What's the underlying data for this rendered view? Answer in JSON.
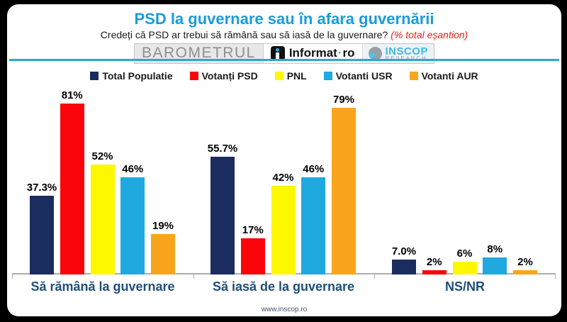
{
  "page": {
    "title": "PSD la guvernare sau în afara guvernării",
    "subtitle": "Credeți că PSD ar trebui să rămână sau să iasă de la guvernare?",
    "subtitle_note": "(% total eșantion)",
    "footer": "www.inscop.ro"
  },
  "logos": {
    "barometrul": "BAROMETRUL",
    "informat_name": "Informat",
    "informat_dot": "·",
    "informat_tld": "ro",
    "inscop_name": "INSCOP",
    "inscop_sub": "RESEARCH"
  },
  "colors": {
    "title_blue": "#1a9cd8",
    "divider_blue": "#2ba7dc",
    "note_red": "#e8201e",
    "category_label": "#1f4e79",
    "axis_gray": "#adadad",
    "footer_text": "#44546a"
  },
  "chart_data": {
    "type": "bar",
    "grouped": true,
    "title": "PSD la guvernare sau în afara guvernării",
    "categories": [
      "Să rămână la guvernare",
      "Să iasă de la guvernare",
      "NS/NR"
    ],
    "series": [
      {
        "name": "Total Populatie",
        "color": "#1b2d5e",
        "values": [
          37.3,
          55.7,
          7.0
        ],
        "labels": [
          "37.3%",
          "55.7%",
          "7.0%"
        ]
      },
      {
        "name": "Votanți PSD",
        "color": "#fa050a",
        "values": [
          81,
          17,
          2
        ],
        "labels": [
          "81%",
          "17%",
          "2%"
        ]
      },
      {
        "name": "PNL",
        "color": "#fdf800",
        "values": [
          52,
          42,
          6
        ],
        "labels": [
          "52%",
          "42%",
          "6%"
        ]
      },
      {
        "name": "Votanti USR",
        "color": "#1fa9df",
        "values": [
          46,
          46,
          8
        ],
        "labels": [
          "46%",
          "46%",
          "8%"
        ]
      },
      {
        "name": "Votanti AUR",
        "color": "#f8a51b",
        "values": [
          19,
          79,
          2
        ],
        "labels": [
          "19%",
          "79%",
          "2%"
        ]
      }
    ],
    "ylim": [
      0,
      100
    ],
    "grid": false,
    "legend_position": "top",
    "value_labels": "above-bars"
  }
}
